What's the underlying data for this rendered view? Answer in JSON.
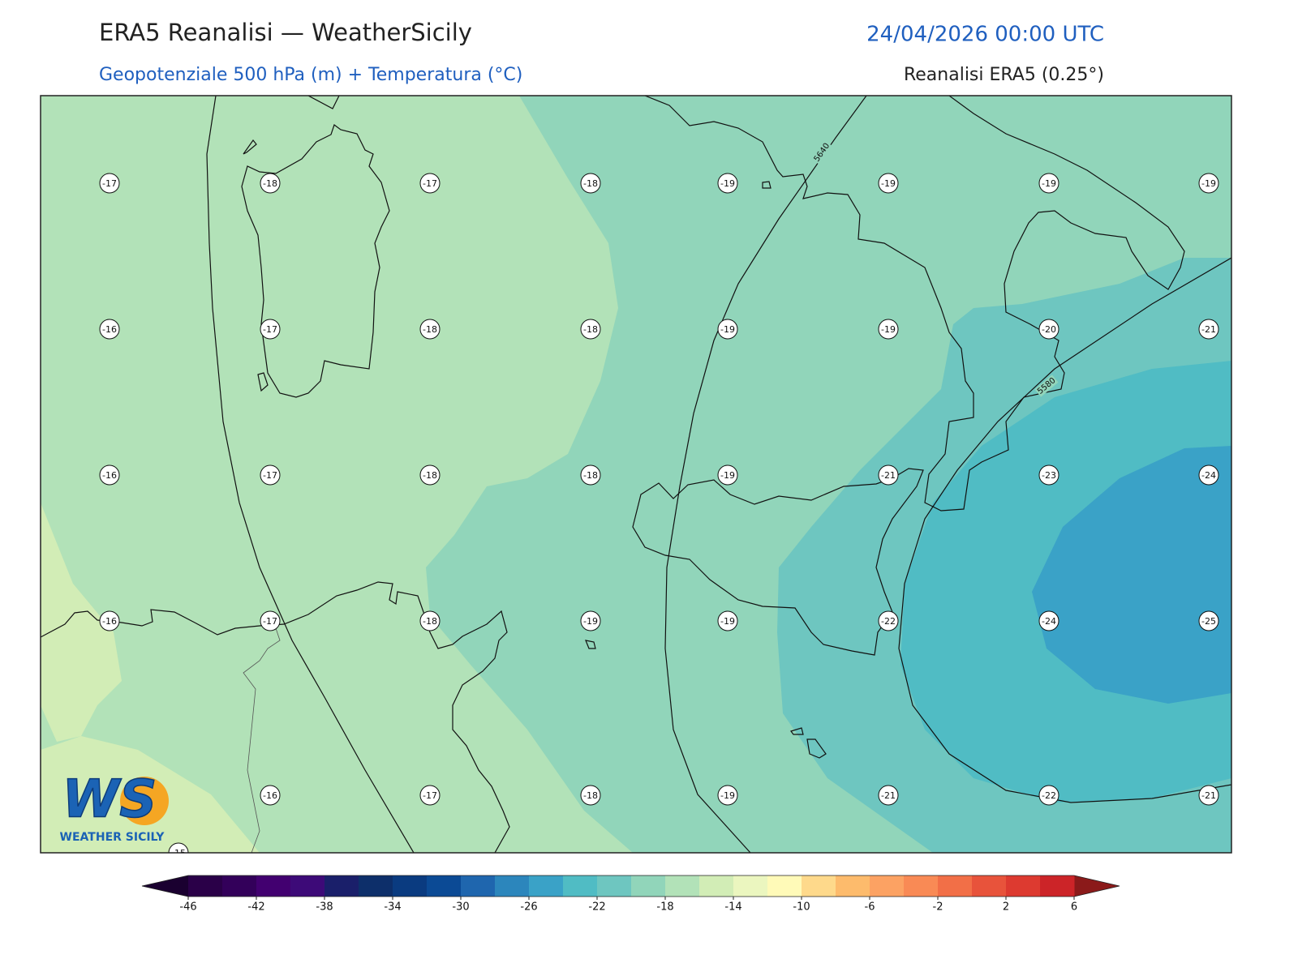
{
  "header": {
    "title": "ERA5 Reanalisi — WeatherSicily",
    "datetime": "24/04/2026 00:00 UTC",
    "subtitle": "Geopotenziale 500 hPa (m) + Temperatura (°C)",
    "source": "Reanalisi ERA5 (0.25°)"
  },
  "map": {
    "temperature_rows": [
      [
        -17,
        -18,
        -17,
        -18,
        -19,
        -19,
        -19,
        -19
      ],
      [
        -16,
        -17,
        -18,
        -18,
        -19,
        -19,
        -20,
        -21
      ],
      [
        -16,
        -17,
        -18,
        -18,
        -19,
        -21,
        -23,
        -24
      ],
      [
        -16,
        -17,
        -18,
        -19,
        -19,
        -22,
        -24,
        -25
      ],
      [
        null,
        -16,
        -17,
        -18,
        -19,
        -21,
        -22,
        -21
      ]
    ],
    "edge_labels": [
      -15
    ],
    "contour_labels": [
      "5640",
      "5580"
    ]
  },
  "colorbar": {
    "limits": [
      -46,
      6
    ],
    "step": 2,
    "ticks": [
      -46,
      -42,
      -38,
      -34,
      -30,
      -26,
      -22,
      -18,
      -14,
      -10,
      -6,
      -2,
      2,
      6
    ],
    "colors": [
      "#2a0048",
      "#33005a",
      "#420070",
      "#3d0a78",
      "#1a1f6a",
      "#0d2f6a",
      "#0a3b80",
      "#0b4a95",
      "#1f66ae",
      "#2c86bc",
      "#3aa2c7",
      "#50bcc4",
      "#6ec6c0",
      "#91d5ba",
      "#b2e2b8",
      "#d2edb6",
      "#ebf6bf",
      "#fffab8",
      "#fed98b",
      "#fdbb6c",
      "#fca263",
      "#f98a55",
      "#f26f47",
      "#e8533b",
      "#dd3a30",
      "#cc2428"
    ],
    "under_color": "#1a0030",
    "over_color": "#8b1a1a"
  },
  "logo": {
    "mark": "WS",
    "text": "WEATHER SICILY"
  }
}
